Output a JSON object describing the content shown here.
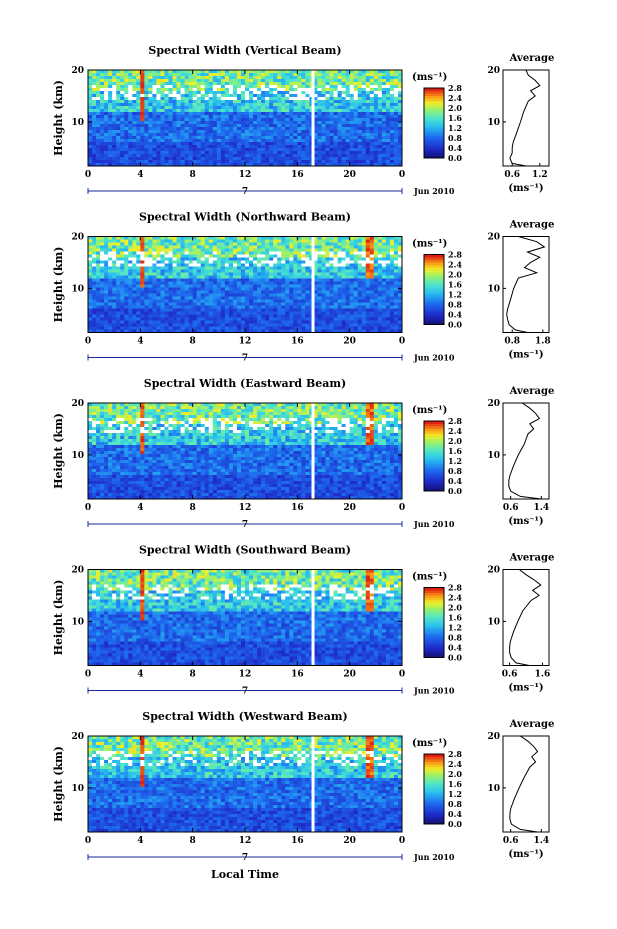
{
  "figure": {
    "x_label": "Local Time",
    "date_label": "Jun 2010",
    "day_label": "7",
    "colorbar_unit": "(ms⁻¹)",
    "colorbar_ticks": [
      "0.0",
      "0.4",
      "0.8",
      "1.2",
      "1.6",
      "2.0",
      "2.4",
      "2.8"
    ],
    "height_label": "Height (km)",
    "average_title": "Average",
    "average_xlabel": "(ms⁻¹)",
    "colors": {
      "frame": "#000000",
      "axis_blue": "#1a2a9a",
      "white_gap": "#ffffff"
    }
  },
  "chart_data": [
    {
      "type": "heatmap",
      "title": "Spectral Width (Vertical Beam)",
      "x_ticks": [
        "0",
        "4",
        "8",
        "12",
        "16",
        "20",
        "0"
      ],
      "xlim": [
        0,
        24
      ],
      "y_ticks": [
        "10",
        "20"
      ],
      "ylim": [
        1.5,
        20
      ],
      "clim": [
        0.0,
        2.8
      ],
      "data_gaps_hours": [
        17.2
      ],
      "average_profile": {
        "x_ticks": [
          "0.6",
          "1.2"
        ],
        "xlim": [
          0.4,
          1.4
        ],
        "height_km": [
          1.5,
          2,
          3,
          4,
          5,
          6,
          8,
          10,
          12,
          14,
          15,
          16,
          17,
          18,
          19,
          20
        ],
        "value": [
          0.9,
          0.6,
          0.55,
          0.6,
          0.6,
          0.62,
          0.7,
          0.78,
          0.85,
          0.95,
          1.1,
          1.0,
          1.2,
          1.1,
          0.95,
          0.9
        ]
      }
    },
    {
      "type": "heatmap",
      "title": "Spectral Width (Northward Beam)",
      "x_ticks": [
        "0",
        "4",
        "8",
        "12",
        "16",
        "20",
        "0"
      ],
      "xlim": [
        0,
        24
      ],
      "y_ticks": [
        "10",
        "20"
      ],
      "ylim": [
        1.5,
        20
      ],
      "clim": [
        0.0,
        2.8
      ],
      "data_gaps_hours": [
        17.2
      ],
      "average_profile": {
        "x_ticks": [
          "0.8",
          "1.8"
        ],
        "xlim": [
          0.5,
          2.0
        ],
        "height_km": [
          1.5,
          2,
          3,
          4,
          5,
          6,
          8,
          10,
          12,
          13,
          14,
          15,
          16,
          17,
          18,
          19,
          20
        ],
        "value": [
          1.3,
          0.9,
          0.7,
          0.65,
          0.62,
          0.65,
          0.75,
          0.85,
          1.0,
          1.6,
          1.2,
          1.4,
          1.7,
          1.3,
          1.85,
          1.6,
          1.0
        ]
      }
    },
    {
      "type": "heatmap",
      "title": "Spectral Width (Eastward Beam)",
      "x_ticks": [
        "0",
        "4",
        "8",
        "12",
        "16",
        "20",
        "0"
      ],
      "xlim": [
        0,
        24
      ],
      "y_ticks": [
        "10",
        "20"
      ],
      "ylim": [
        1.5,
        20
      ],
      "clim": [
        0.0,
        2.8
      ],
      "data_gaps_hours": [
        17.2
      ],
      "average_profile": {
        "x_ticks": [
          "0.6",
          "1.4"
        ],
        "xlim": [
          0.4,
          1.6
        ],
        "height_km": [
          1.5,
          2,
          3,
          4,
          5,
          6,
          8,
          10,
          12,
          14,
          15,
          16,
          17,
          18,
          19,
          20
        ],
        "value": [
          1.4,
          0.85,
          0.6,
          0.55,
          0.55,
          0.58,
          0.68,
          0.8,
          0.95,
          1.05,
          1.2,
          1.1,
          1.35,
          1.25,
          1.1,
          0.9
        ]
      }
    },
    {
      "type": "heatmap",
      "title": "Spectral Width (Southward Beam)",
      "x_ticks": [
        "0",
        "4",
        "8",
        "12",
        "16",
        "20",
        "0"
      ],
      "xlim": [
        0,
        24
      ],
      "y_ticks": [
        "10",
        "20"
      ],
      "ylim": [
        1.5,
        20
      ],
      "clim": [
        0.0,
        2.8
      ],
      "data_gaps_hours": [
        17.2
      ],
      "average_profile": {
        "x_ticks": [
          "0.6",
          "1.6"
        ],
        "xlim": [
          0.4,
          1.8
        ],
        "height_km": [
          1.5,
          2,
          3,
          4,
          5,
          6,
          8,
          10,
          12,
          14,
          15,
          16,
          17,
          18,
          19,
          20
        ],
        "value": [
          1.2,
          0.8,
          0.65,
          0.6,
          0.6,
          0.62,
          0.72,
          0.85,
          1.0,
          1.25,
          1.5,
          1.3,
          1.55,
          1.35,
          1.1,
          0.9
        ]
      }
    },
    {
      "type": "heatmap",
      "title": "Spectral Width (Westward Beam)",
      "x_ticks": [
        "0",
        "4",
        "8",
        "12",
        "16",
        "20",
        "0"
      ],
      "xlim": [
        0,
        24
      ],
      "y_ticks": [
        "10",
        "20"
      ],
      "ylim": [
        1.5,
        20
      ],
      "clim": [
        0.0,
        2.8
      ],
      "data_gaps_hours": [
        17.2
      ],
      "average_profile": {
        "x_ticks": [
          "0.6",
          "1.4"
        ],
        "xlim": [
          0.4,
          1.6
        ],
        "height_km": [
          1.5,
          2,
          3,
          4,
          5,
          6,
          8,
          10,
          12,
          14,
          15,
          16,
          17,
          18,
          19,
          20
        ],
        "value": [
          1.3,
          0.85,
          0.62,
          0.58,
          0.58,
          0.6,
          0.7,
          0.82,
          0.95,
          1.1,
          1.25,
          1.15,
          1.3,
          1.2,
          1.05,
          0.85
        ]
      }
    }
  ]
}
